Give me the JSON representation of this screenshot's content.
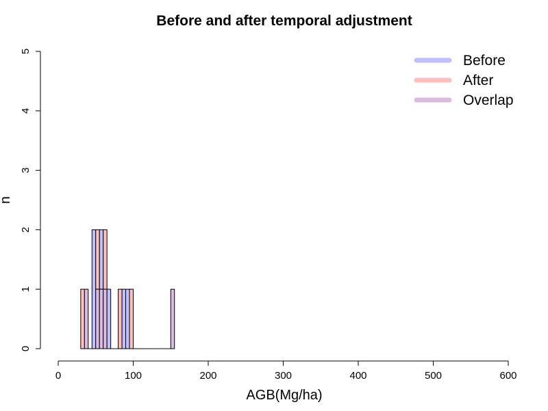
{
  "chart_data": {
    "type": "bar",
    "title": "Before and after temporal adjustment",
    "xlabel": "AGB(Mg/ha)",
    "ylabel": "n",
    "xlim": [
      0,
      600
    ],
    "ylim": [
      0,
      5
    ],
    "x_ticks": [
      "0",
      "100",
      "200",
      "300",
      "400",
      "500",
      "600"
    ],
    "y_ticks": [
      "0",
      "1",
      "2",
      "3",
      "4",
      "5"
    ],
    "grid": false,
    "legend_position": "top-right",
    "bin_width": 5,
    "colors": {
      "Before": "#bfbfff",
      "After": "#ffbfbf",
      "Overlap": "#d9bbe4"
    },
    "series": [
      {
        "name": "Before",
        "bins": [
          {
            "x0": 35,
            "x1": 40,
            "n": 1
          },
          {
            "x0": 45,
            "x1": 50,
            "n": 2
          },
          {
            "x0": 50,
            "x1": 55,
            "n": 1
          },
          {
            "x0": 55,
            "x1": 60,
            "n": 2
          },
          {
            "x0": 60,
            "x1": 65,
            "n": 1
          },
          {
            "x0": 65,
            "x1": 70,
            "n": 1
          },
          {
            "x0": 85,
            "x1": 90,
            "n": 1
          },
          {
            "x0": 90,
            "x1": 95,
            "n": 1
          },
          {
            "x0": 150,
            "x1": 155,
            "n": 1
          }
        ]
      },
      {
        "name": "After",
        "bins": [
          {
            "x0": 30,
            "x1": 35,
            "n": 1
          },
          {
            "x0": 35,
            "x1": 40,
            "n": 1
          },
          {
            "x0": 50,
            "x1": 55,
            "n": 2
          },
          {
            "x0": 55,
            "x1": 60,
            "n": 1
          },
          {
            "x0": 60,
            "x1": 65,
            "n": 2
          },
          {
            "x0": 80,
            "x1": 85,
            "n": 1
          },
          {
            "x0": 95,
            "x1": 100,
            "n": 1
          },
          {
            "x0": 150,
            "x1": 155,
            "n": 1
          }
        ]
      }
    ],
    "legend": [
      "Before",
      "After",
      "Overlap"
    ]
  }
}
